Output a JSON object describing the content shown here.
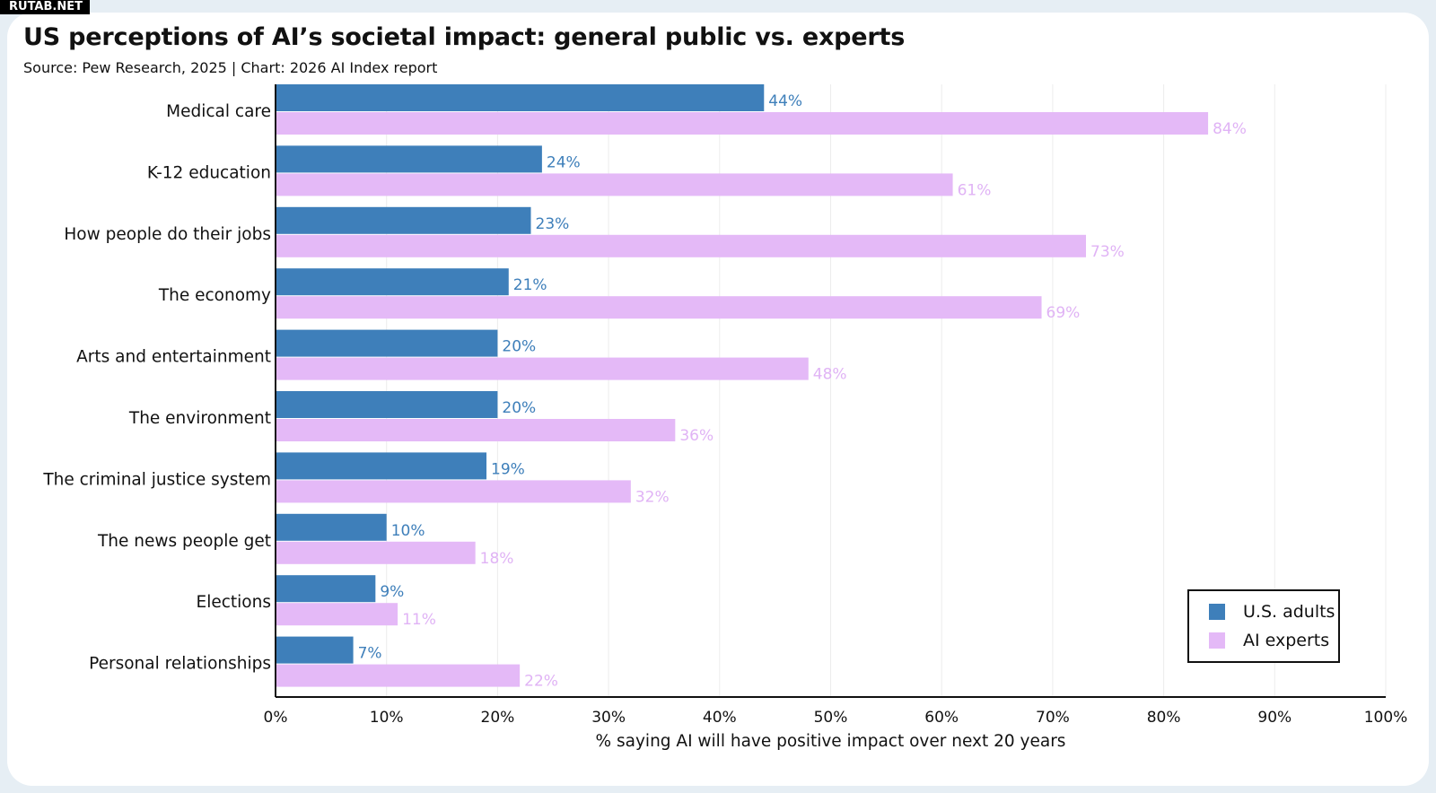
{
  "watermark": "RUTAB.NET",
  "colors": {
    "us_adults": "#3e7fba",
    "ai_experts": "#e4b9f7",
    "us_adults_label": "#3e7fba",
    "ai_experts_label": "#e0b3f5"
  },
  "chart_data": {
    "type": "bar",
    "orientation": "horizontal",
    "title": "US perceptions of AI’s societal impact: general public vs. experts",
    "subtitle": "Source: Pew Research, 2025 | Chart: 2026 AI Index report",
    "categories": [
      "Medical care",
      "K-12 education",
      "How people do their jobs",
      "The economy",
      "Arts and entertainment",
      "The environment",
      "The criminal justice system",
      "The news people get",
      "Elections",
      "Personal relationships"
    ],
    "series": [
      {
        "name": "U.S. adults",
        "values": [
          44,
          24,
          23,
          21,
          20,
          20,
          19,
          10,
          9,
          7
        ]
      },
      {
        "name": "AI experts",
        "values": [
          84,
          61,
          73,
          69,
          48,
          36,
          32,
          18,
          11,
          22
        ]
      }
    ],
    "data_label_suffix": "%",
    "xlabel": "% saying AI will have positive impact over next 20 years",
    "ylabel": "",
    "xlim": [
      0,
      100
    ],
    "xticks": [
      "0%",
      "10%",
      "20%",
      "30%",
      "40%",
      "50%",
      "60%",
      "70%",
      "80%",
      "90%",
      "100%"
    ],
    "grid": true,
    "legend_position": "bottom-right"
  }
}
